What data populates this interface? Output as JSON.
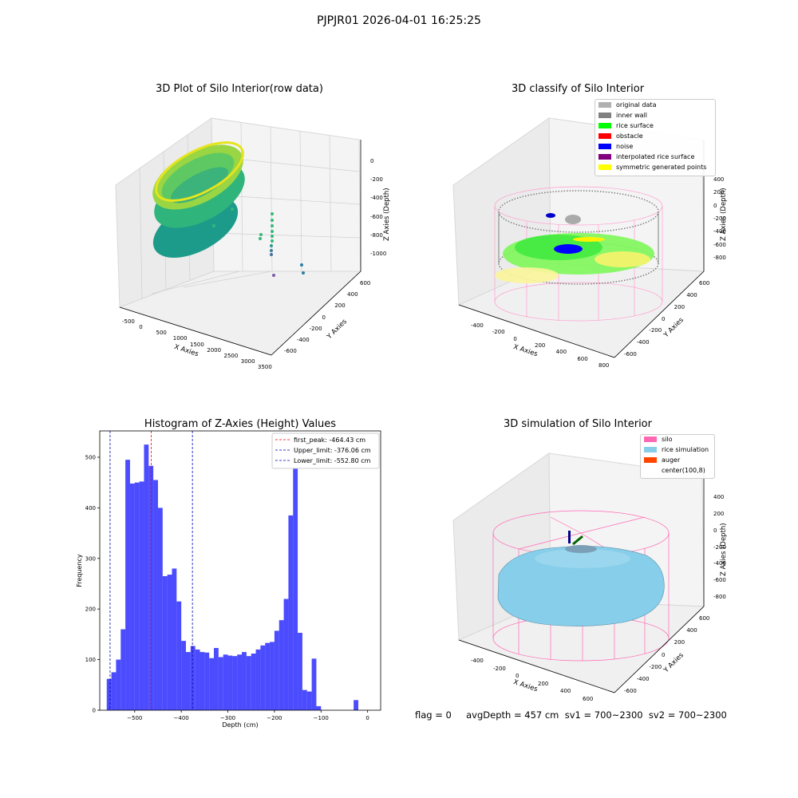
{
  "suptitle": "PJPJR01 2026-04-01 16:25:25",
  "panels": {
    "raw": {
      "title": "3D Plot of Silo Interior(row data)",
      "xlabel": "X Axies",
      "ylabel": "Y Axies",
      "zlabel": "Z Axies (Depth)",
      "xticks": [
        "-500",
        "0",
        "500",
        "1000",
        "1500",
        "2000",
        "2500",
        "3000",
        "3500"
      ],
      "yticks": [
        "600",
        "400",
        "200",
        "0",
        "-200",
        "-400",
        "-600"
      ],
      "zticks": [
        "0",
        "-200",
        "-400",
        "-600",
        "-800",
        "-1000"
      ]
    },
    "classify": {
      "title": "3D classify of Silo Interior",
      "xlabel": "X Axies",
      "ylabel": "Y Axies",
      "zlabel": "Z Axies (Depth)",
      "xticks": [
        "-400",
        "-200",
        "0",
        "200",
        "400",
        "600",
        "800"
      ],
      "yticks": [
        "600",
        "400",
        "200",
        "0",
        "-200",
        "-400",
        "-600"
      ],
      "zticks": [
        "400",
        "200",
        "0",
        "-200",
        "-400",
        "-600",
        "-800"
      ],
      "legend": [
        {
          "label": "original data",
          "color": "#b0b0b0"
        },
        {
          "label": "inner wall",
          "color": "#808080"
        },
        {
          "label": "rice surface",
          "color": "#00ff00"
        },
        {
          "label": "obstacle",
          "color": "#ff0000"
        },
        {
          "label": "noise",
          "color": "#0000ff"
        },
        {
          "label": "interpolated rice surface",
          "color": "#800080"
        },
        {
          "label": "symmetric generated points",
          "color": "#ffff00"
        }
      ]
    },
    "simulation": {
      "title": "3D simulation of Silo Interior",
      "xlabel": "X Axies",
      "ylabel": "Y Axies",
      "zlabel": "Z Axies (Depth)",
      "xticks": [
        "-400",
        "-200",
        "0",
        "200",
        "400",
        "600"
      ],
      "yticks": [
        "600",
        "400",
        "200",
        "0",
        "-200",
        "-400",
        "-600"
      ],
      "zticks": [
        "400",
        "200",
        "0",
        "-200",
        "-400",
        "-600",
        "-800"
      ],
      "legend": [
        {
          "label": "silo",
          "color": "#ff69b4"
        },
        {
          "label": "rice simulation",
          "color": "#87ceeb"
        },
        {
          "label": "auger",
          "color": "#ff4500"
        },
        {
          "label": "center(100,8)",
          "color": "#ffffff"
        }
      ]
    }
  },
  "bottom_text": "flag = 0     avgDepth = 457 cm  sv1 = 700~2300  sv2 = 700~2300",
  "chart_data": {
    "type": "bar",
    "title": "Histogram of Z-Axies (Height) Values",
    "xlabel": "Depth (cm)",
    "ylabel": "Frequency",
    "bar_color": "#0000ff",
    "bin_start": -560,
    "bin_width": 10,
    "values": [
      62,
      75,
      100,
      160,
      495,
      448,
      450,
      452,
      525,
      483,
      455,
      400,
      265,
      268,
      280,
      215,
      137,
      115,
      127,
      120,
      115,
      114,
      103,
      123,
      105,
      110,
      108,
      107,
      110,
      115,
      107,
      112,
      120,
      128,
      133,
      135,
      157,
      178,
      220,
      385,
      520,
      153,
      40,
      37,
      102,
      8,
      0,
      0,
      0,
      0,
      0,
      0,
      0,
      20
    ],
    "xlim": [
      -575,
      28
    ],
    "ylim": [
      0,
      552
    ],
    "xticks": [
      -500,
      -400,
      -300,
      -200,
      -100,
      0
    ],
    "yticks": [
      0,
      100,
      200,
      300,
      400,
      500
    ],
    "vlines": [
      {
        "label": "first_peak: -464.43 cm",
        "value": -464.43,
        "color": "#ff0000"
      },
      {
        "label": "Upper_limit: -376.06 cm",
        "value": -376.06,
        "color": "#0000aa"
      },
      {
        "label": "Lower_limit: -552.80 cm",
        "value": -552.8,
        "color": "#0000aa"
      }
    ],
    "legend_position": "top-right"
  }
}
